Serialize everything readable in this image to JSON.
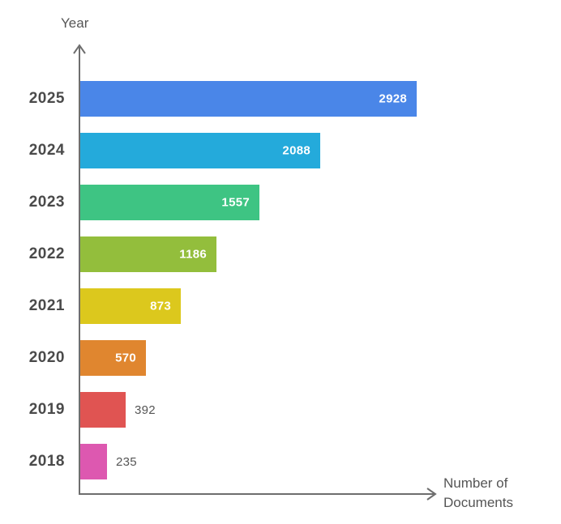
{
  "chart_data": {
    "type": "bar",
    "orientation": "horizontal",
    "title": "",
    "xlabel": "Number of Documents",
    "ylabel": "Year",
    "categories": [
      "2025",
      "2024",
      "2023",
      "2022",
      "2021",
      "2020",
      "2019",
      "2018"
    ],
    "values": [
      2928,
      2088,
      1557,
      1186,
      873,
      570,
      392,
      235
    ],
    "colors": [
      "#4a86e8",
      "#24aadb",
      "#3ec483",
      "#93be3c",
      "#dcc81d",
      "#e0862f",
      "#e05452",
      "#dd58b0"
    ],
    "xlim": [
      0,
      3000
    ],
    "grid": false,
    "legend": false,
    "value_label_placement": "inside bar (white bold) for wide bars, outside (gray) for 392 and 235"
  },
  "palette": {
    "axis": "#6e6e6e",
    "axis_title_text": "#555555",
    "category_label_text": "#4a4a4a",
    "value_inside_text": "#ffffff",
    "value_outside_text": "#555555",
    "background": "#ffffff"
  }
}
